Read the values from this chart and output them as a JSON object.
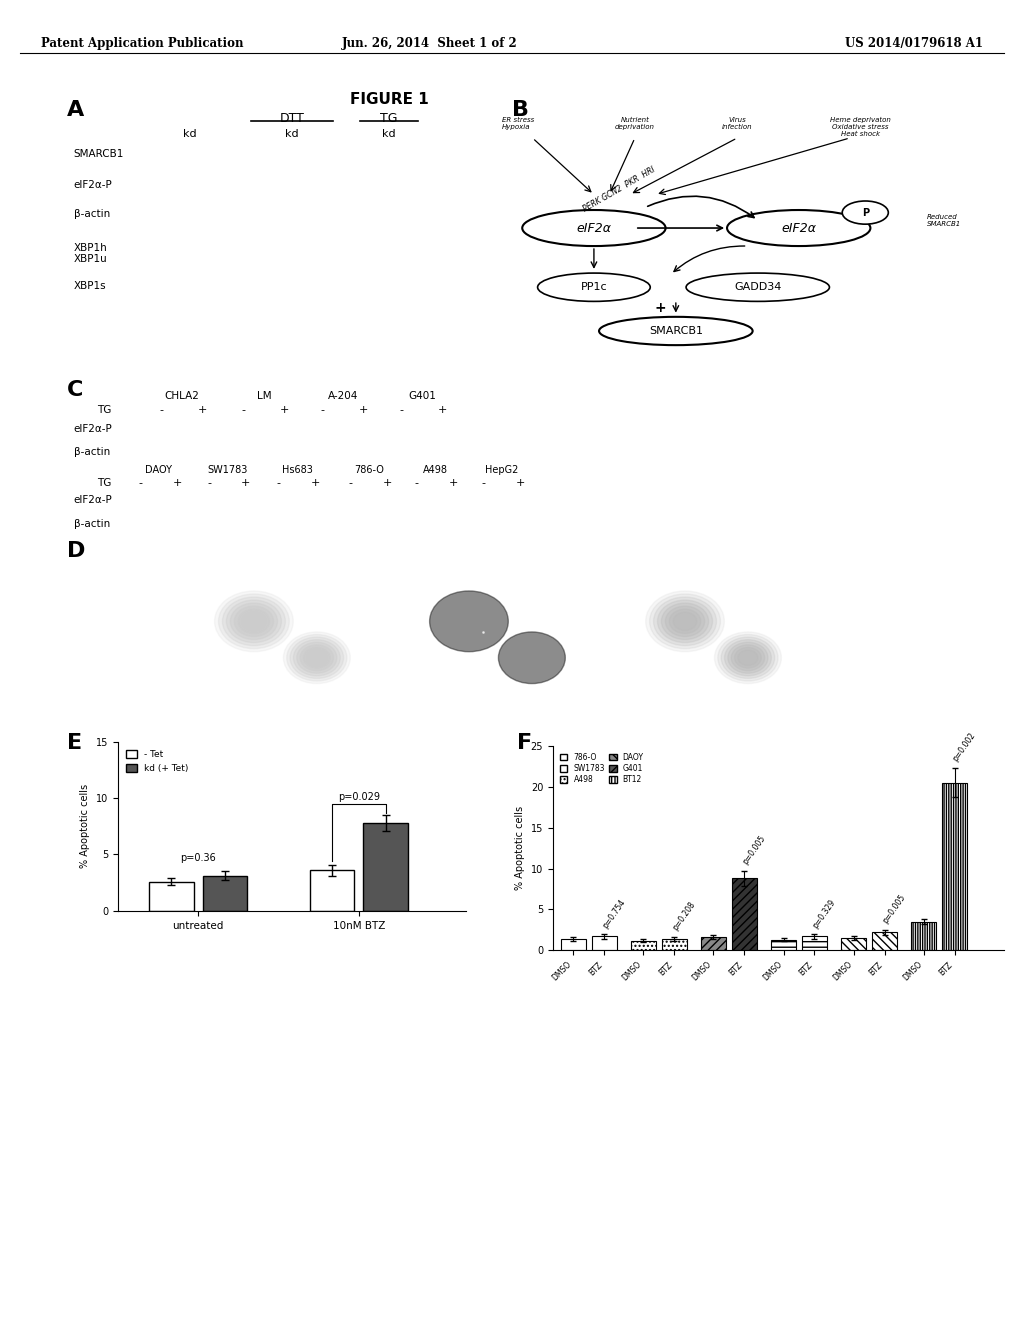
{
  "header_left": "Patent Application Publication",
  "header_center": "Jun. 26, 2014  Sheet 1 of 2",
  "header_right": "US 2014/0179618 A1",
  "figure_title": "FIGURE 1",
  "background_color": "#ffffff",
  "text_color": "#000000",
  "E_ylabel": "% Apoptotic cells",
  "E_xlabel_untreated": "untreated",
  "E_xlabel_BTZ": "10nM BTZ",
  "E_legend1": "- Tet",
  "E_legend2": "kd (+ Tet)",
  "E_ylim": [
    0,
    15
  ],
  "E_yticks": [
    0,
    5,
    10,
    15
  ],
  "E_bars": {
    "untreated_noTet": 2.6,
    "untreated_kd": 3.1,
    "BTZ_noTet": 3.6,
    "BTZ_kd": 7.8
  },
  "E_errors": {
    "untreated_noTet": 0.35,
    "untreated_kd": 0.4,
    "BTZ_noTet": 0.5,
    "BTZ_kd": 0.7
  },
  "E_pvals": {
    "untreated": "p=0.36",
    "BTZ": "p=0.029"
  },
  "F_ylabel": "% Apoptotic cells",
  "F_ylim": [
    0,
    25
  ],
  "F_yticks": [
    0,
    5,
    10,
    15,
    20,
    25
  ],
  "F_groups": [
    "786-O",
    "A498",
    "G401",
    "SW1783",
    "DAOY",
    "BT12"
  ],
  "F_bars_DMSO": [
    1.4,
    1.2,
    1.6,
    1.3,
    1.5,
    3.5
  ],
  "F_bars_BTZ": [
    1.7,
    1.4,
    8.8,
    1.7,
    2.2,
    20.5
  ],
  "F_errors_DMSO": [
    0.2,
    0.15,
    0.25,
    0.2,
    0.2,
    0.3
  ],
  "F_errors_BTZ": [
    0.25,
    0.2,
    0.9,
    0.25,
    0.3,
    1.8
  ],
  "F_pvals": [
    "p=0.754",
    "p=0.208",
    "p=0.005",
    "p=0.329",
    "p=0.005",
    "p=0.002"
  ]
}
